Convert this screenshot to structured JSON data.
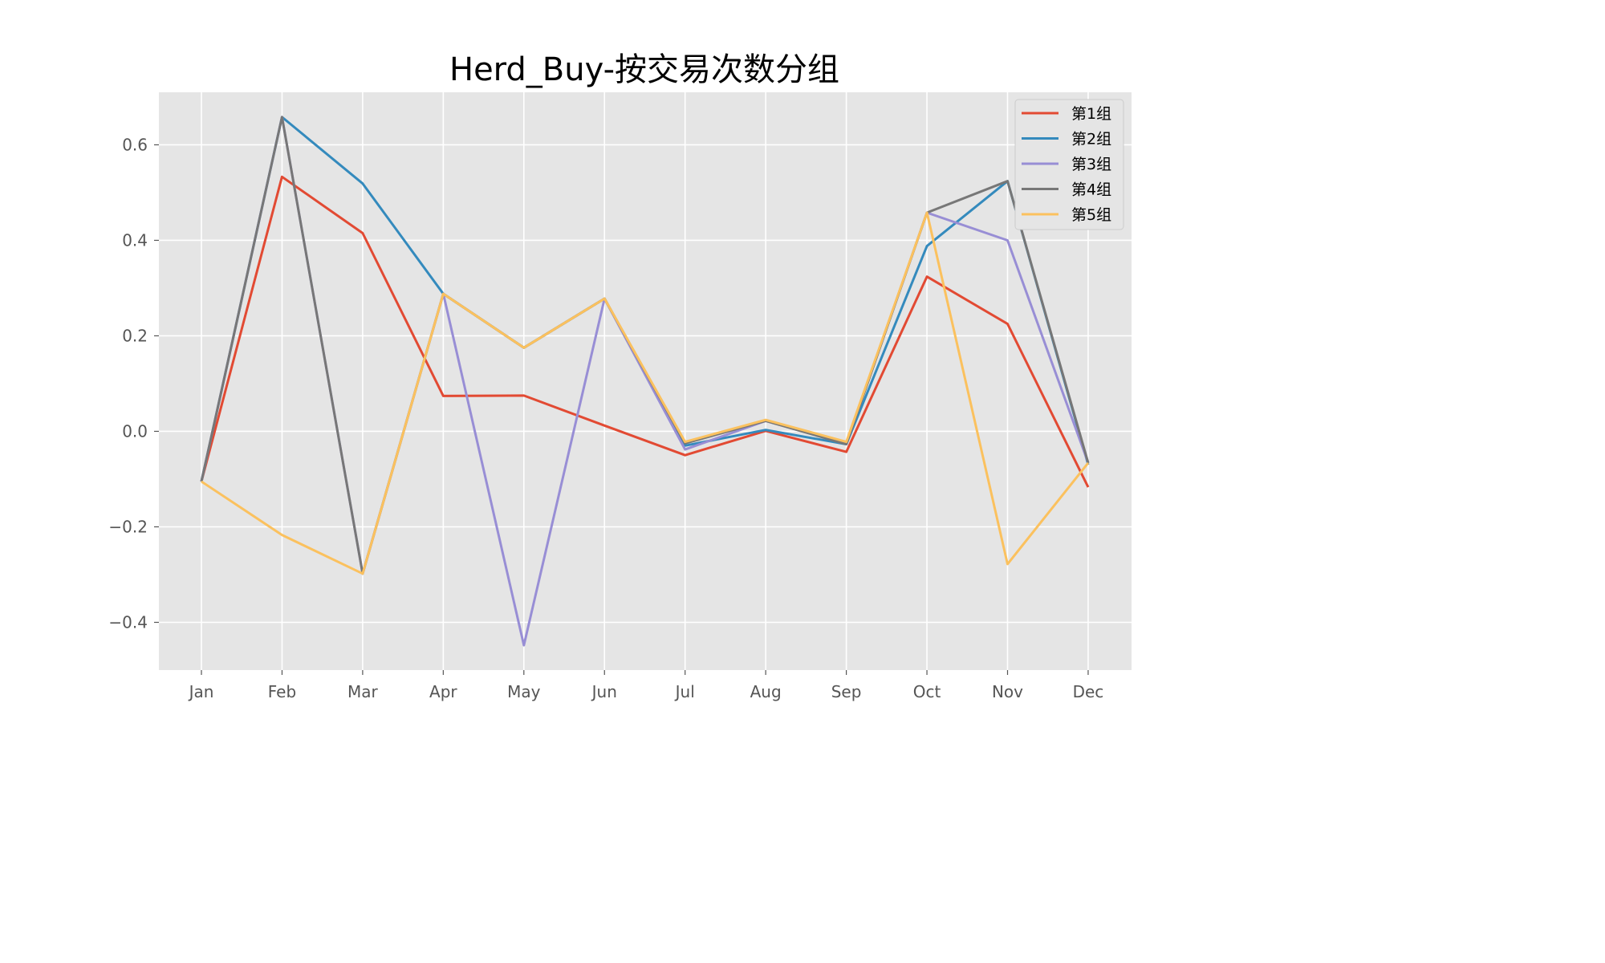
{
  "chart_data": {
    "type": "line",
    "title": "Herd_Buy-按交易次数分组",
    "xlabel": "",
    "ylabel": "",
    "categories": [
      "Jan",
      "Feb",
      "Mar",
      "Apr",
      "May",
      "Jun",
      "Jul",
      "Aug",
      "Sep",
      "Oct",
      "Nov",
      "Dec"
    ],
    "ylim": [
      -0.5,
      0.71
    ],
    "yticks": [
      -0.4,
      -0.2,
      0.0,
      0.2,
      0.4,
      0.6
    ],
    "ytick_labels": [
      "−0.4",
      "−0.2",
      "0.0",
      "0.2",
      "0.4",
      "0.6"
    ],
    "grid": true,
    "legend_position": "top-right",
    "series": [
      {
        "name": "第1组",
        "color": "#e24a33",
        "values": [
          -0.105,
          0.533,
          0.415,
          0.074,
          0.075,
          0.012,
          -0.05,
          0.001,
          -0.043,
          0.324,
          0.225,
          -0.117
        ]
      },
      {
        "name": "第2组",
        "color": "#348abd",
        "values": [
          -0.105,
          0.658,
          0.519,
          0.288,
          0.175,
          0.278,
          -0.03,
          0.003,
          -0.027,
          0.388,
          0.524,
          -0.07
        ]
      },
      {
        "name": "第3组",
        "color": "#988ed5",
        "values": [
          -0.105,
          0.658,
          -0.298,
          0.288,
          -0.448,
          0.278,
          -0.038,
          0.022,
          -0.025,
          0.458,
          0.4,
          -0.066
        ]
      },
      {
        "name": "第4组",
        "color": "#777777",
        "values": [
          -0.105,
          0.658,
          -0.298,
          0.288,
          0.175,
          0.278,
          -0.025,
          0.022,
          -0.027,
          0.458,
          0.524,
          -0.066
        ]
      },
      {
        "name": "第5组",
        "color": "#fbc15e",
        "values": [
          -0.105,
          -0.217,
          -0.298,
          0.288,
          0.175,
          0.278,
          -0.022,
          0.024,
          -0.022,
          0.458,
          -0.278,
          -0.066
        ]
      }
    ]
  }
}
